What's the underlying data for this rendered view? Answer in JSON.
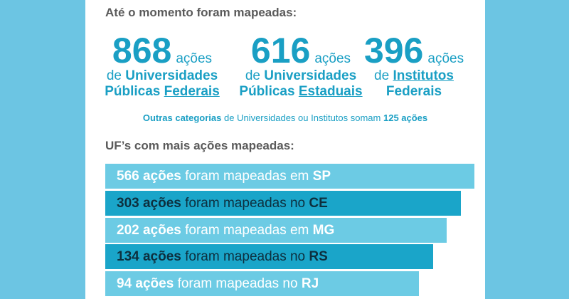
{
  "header": {
    "title": "Até o momento foram mapeadas:"
  },
  "stats": [
    {
      "number": "868",
      "unit": "ações",
      "line1_pre": "de ",
      "line1_bold": "Universidades",
      "line2_bold": "Públicas ",
      "line2_under": "Federais"
    },
    {
      "number": "616",
      "unit": "ações",
      "line1_pre": "de ",
      "line1_bold": "Universidades",
      "line2_bold": "Públicas ",
      "line2_under": "Estaduais"
    },
    {
      "number": "396",
      "unit": "ações",
      "line1_pre": "de ",
      "line1_under": "Institutos",
      "line2_bold": "Federais"
    }
  ],
  "others": {
    "bold1": "Outras categorias",
    "text": " de Universidades ou Institutos somam ",
    "bold2": "125 ações"
  },
  "uf_section": {
    "title": "UF’s com mais ações mapeadas:"
  },
  "bars": [
    {
      "count": "566 ações",
      "text": " foram mapeadas em ",
      "uf": "SP",
      "value": 566
    },
    {
      "count": "303 ações",
      "text": " foram mapeadas no ",
      "uf": "CE",
      "value": 303
    },
    {
      "count": "202 ações",
      "text": " foram mapeadas em ",
      "uf": "MG",
      "value": 202
    },
    {
      "count": "134 ações",
      "text": " foram mapeadas no ",
      "uf": "RS",
      "value": 134
    },
    {
      "count": "94 ações",
      "text": " foram mapeadas no ",
      "uf": "RJ",
      "value": 94
    }
  ],
  "colors": {
    "accent": "#1a9fc4",
    "bar_light": "#6ccbe4",
    "bar_dark": "#1aa5c9",
    "background": "#6cc5e3"
  }
}
